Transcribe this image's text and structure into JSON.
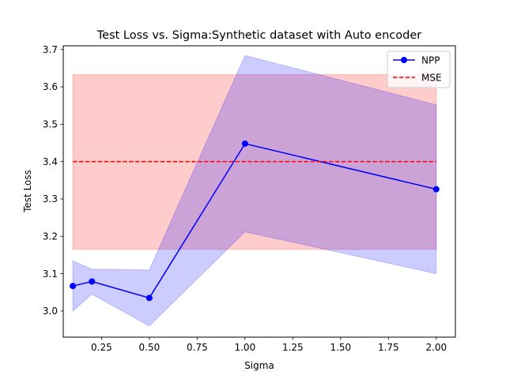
{
  "chart_data": {
    "type": "line",
    "title": "Test Loss vs. Sigma:Synthetic dataset with Auto encoder",
    "xlabel": "Sigma",
    "ylabel": "Test Loss",
    "xlim": [
      0.05,
      2.1
    ],
    "ylim": [
      2.93,
      3.71
    ],
    "xticks": [
      0.25,
      0.5,
      0.75,
      1.0,
      1.25,
      1.5,
      1.75,
      2.0
    ],
    "xtick_labels": [
      "0.25",
      "0.50",
      "0.75",
      "1.00",
      "1.25",
      "1.50",
      "1.75",
      "2.00"
    ],
    "yticks": [
      3.0,
      3.1,
      3.2,
      3.3,
      3.4,
      3.5,
      3.6,
      3.7
    ],
    "ytick_labels": [
      "3.0",
      "3.1",
      "3.2",
      "3.3",
      "3.4",
      "3.5",
      "3.6",
      "3.7"
    ],
    "grid": false,
    "legend_position": "top-right",
    "series": [
      {
        "name": "NPP",
        "style": "solid line with circle markers",
        "color": "#0000ff",
        "band_color": "#0000ff",
        "x": [
          0.1,
          0.2,
          0.5,
          1.0,
          2.0
        ],
        "y": [
          3.067,
          3.079,
          3.035,
          3.448,
          3.326
        ],
        "band_lower": [
          3.0,
          3.045,
          2.96,
          3.212,
          3.1
        ],
        "band_upper": [
          3.134,
          3.112,
          3.11,
          3.684,
          3.552
        ]
      },
      {
        "name": "MSE",
        "style": "dashed line",
        "color": "#ff0000",
        "band_color": "#ff0000",
        "x": [
          0.1,
          2.0
        ],
        "y": [
          3.4,
          3.4
        ],
        "band_lower": [
          3.165,
          3.165
        ],
        "band_upper": [
          3.633,
          3.633
        ]
      }
    ]
  }
}
